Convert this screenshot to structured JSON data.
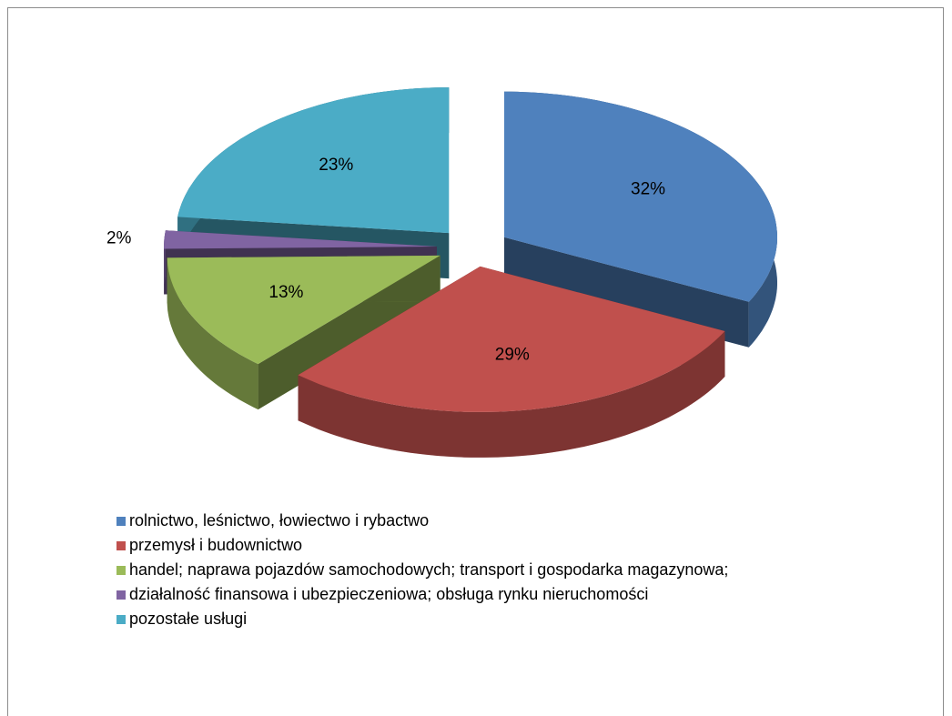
{
  "chart_data": {
    "type": "pie",
    "categories": [
      "rolnictwo, leśnictwo, łowiectwo i rybactwo",
      "przemysł i budownictwo",
      "handel; naprawa pojazdów samochodowych; transport i gospodarka magazynowa;",
      "działalność finansowa i ubezpieczeniowa; obsługa rynku nieruchomości",
      "pozostałe usługi"
    ],
    "values": [
      32,
      29,
      13,
      2,
      23
    ],
    "value_labels": [
      "32%",
      "29%",
      "13%",
      "2%",
      "23%"
    ],
    "colors": [
      "#4f81bd",
      "#c0504d",
      "#9bbb59",
      "#8064a2",
      "#4bacc6"
    ],
    "legend": "bottom-left"
  }
}
